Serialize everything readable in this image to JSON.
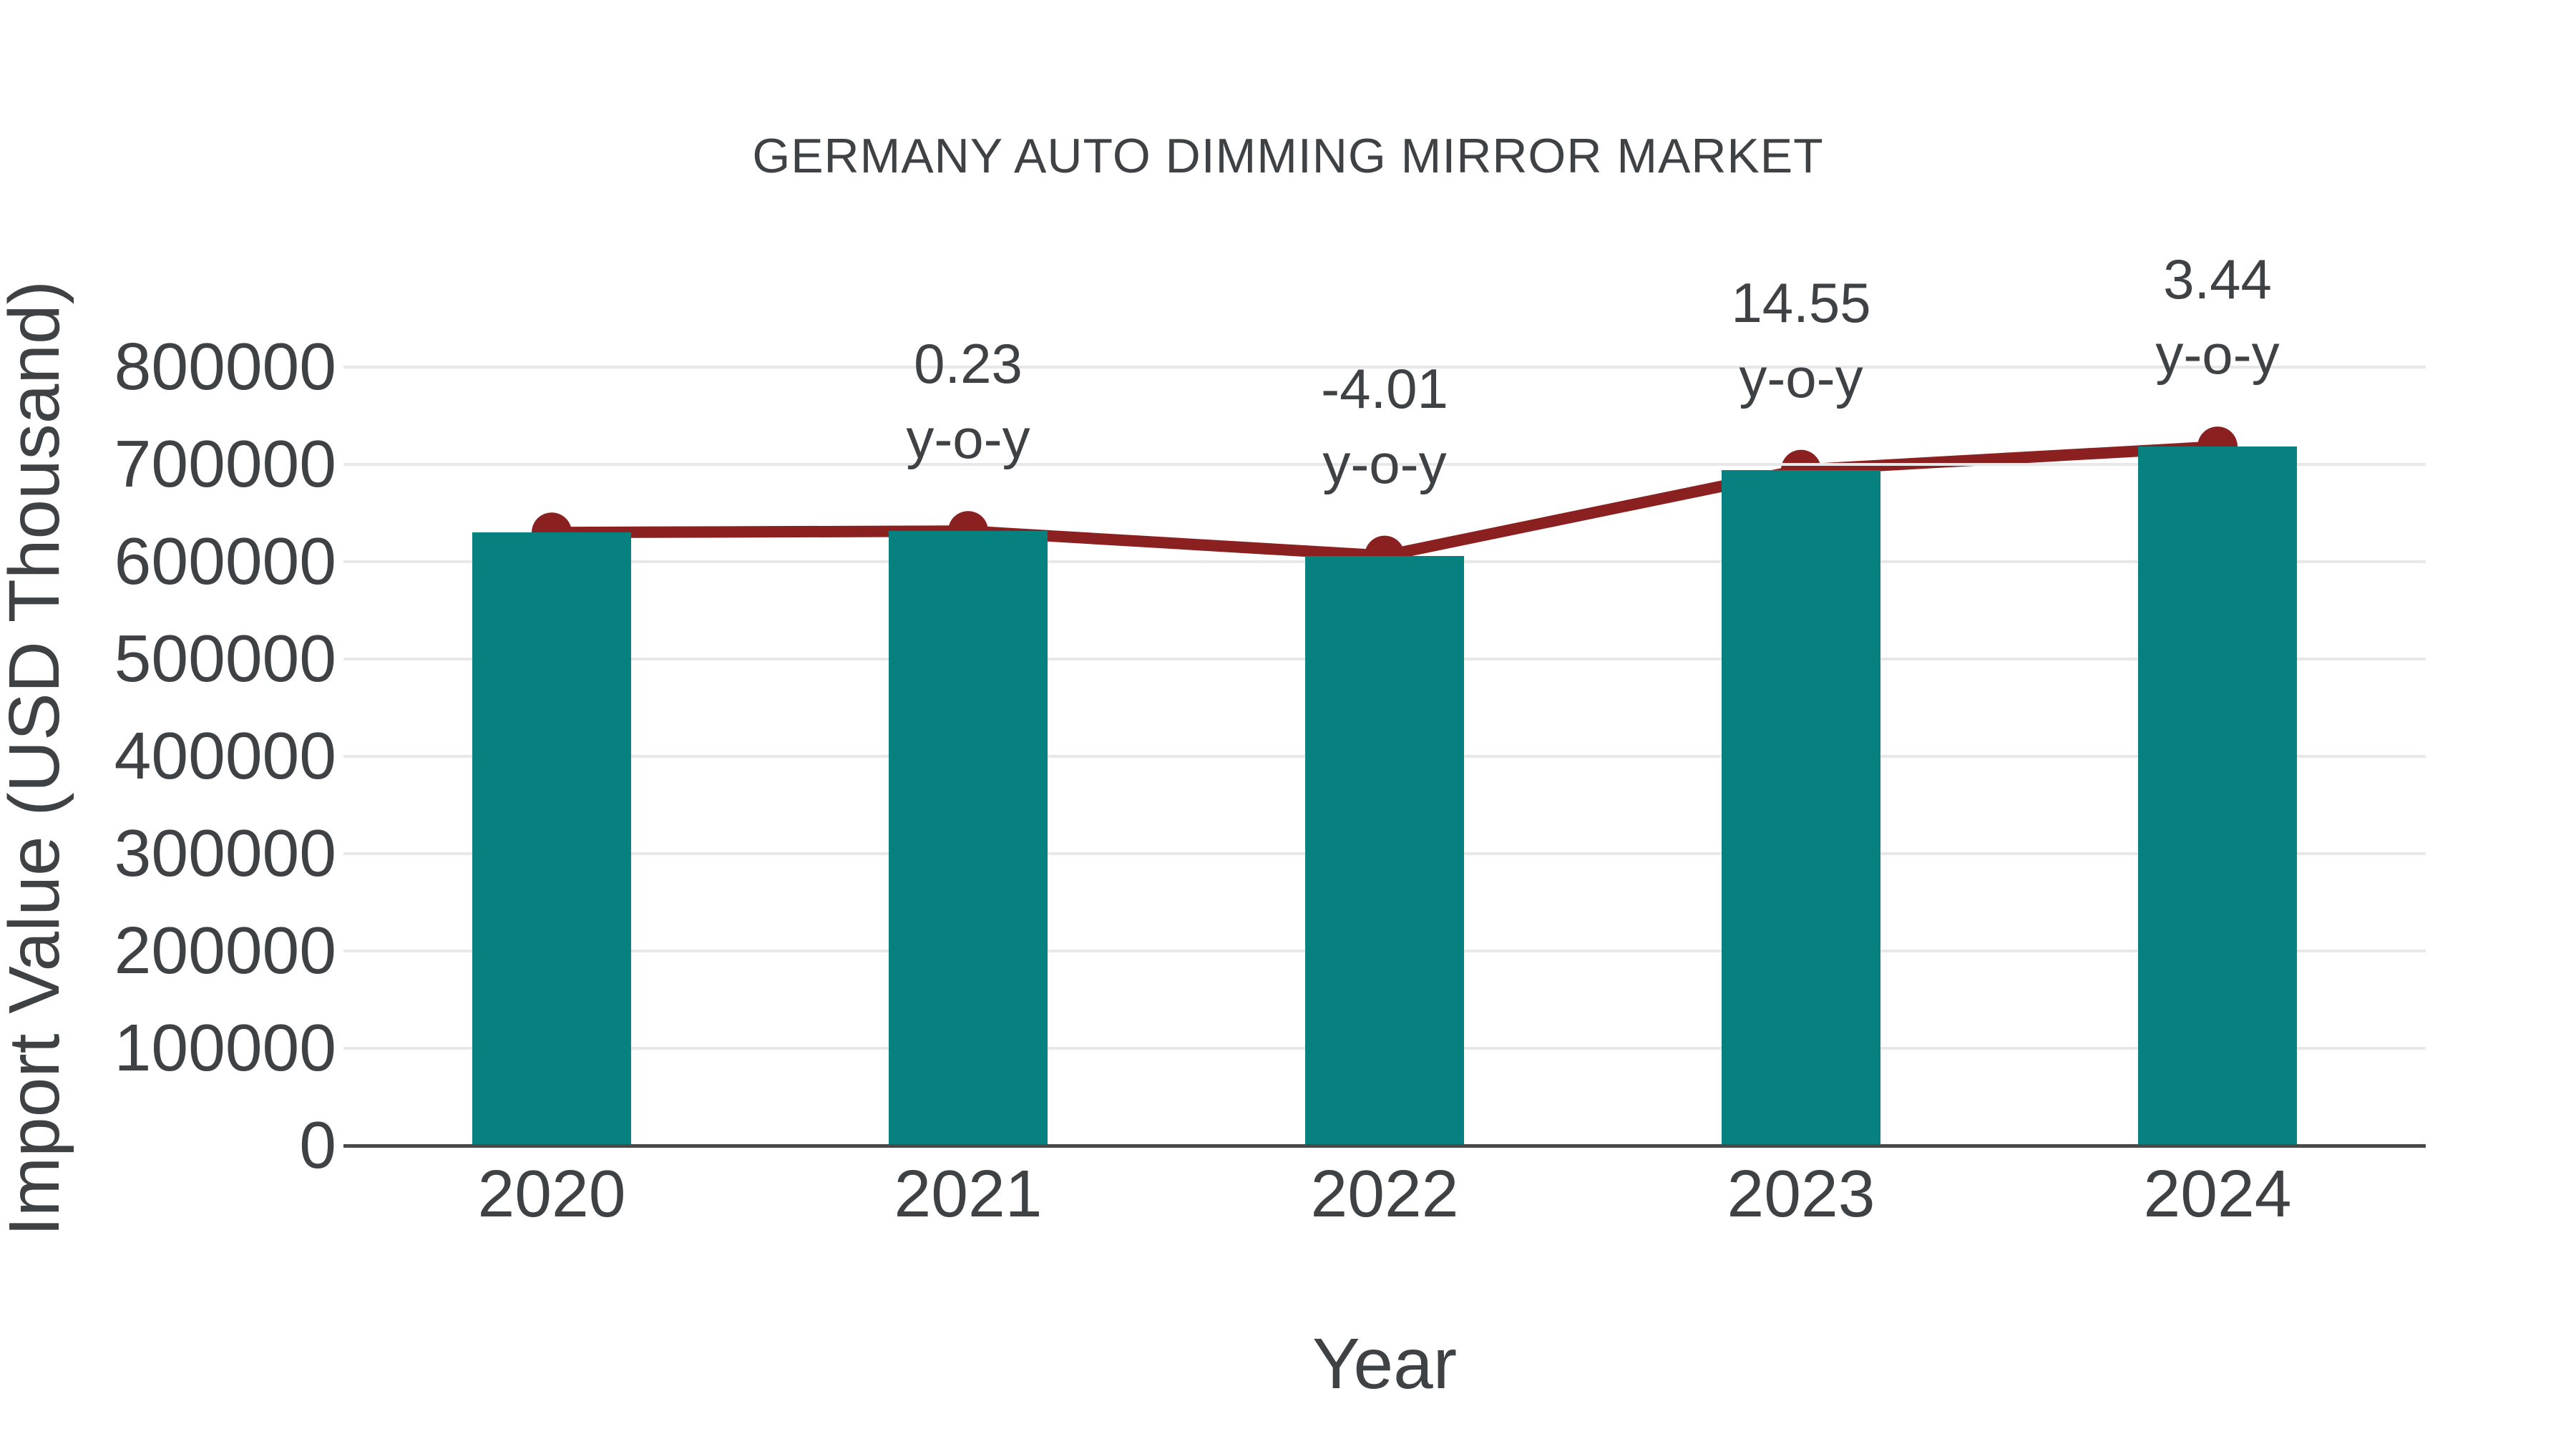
{
  "chart_data": {
    "type": "bar",
    "title": "GERMANY AUTO DIMMING MIRROR MARKET",
    "xlabel": "Year",
    "ylabel": "Import Value (USD Thousand)",
    "categories": [
      "2020",
      "2021",
      "2022",
      "2023",
      "2024"
    ],
    "series": [
      {
        "name": "Import Value (USD Thousand)",
        "type": "bar",
        "color": "#078180",
        "values": [
          630000,
          631450,
          606130,
          694370,
          718260
        ]
      },
      {
        "name": "y-o-y growth marker line",
        "type": "line",
        "color": "#8a2020",
        "values": [
          630000,
          631450,
          606130,
          694370,
          718260
        ],
        "point_labels": [
          null,
          "0.23",
          "-4.01",
          "14.55",
          "3.44"
        ],
        "label_suffix": "y-o-y"
      }
    ],
    "yoy_percent": [
      null,
      0.23,
      -4.01,
      14.55,
      3.44
    ],
    "yticks": [
      "0",
      "100000",
      "200000",
      "300000",
      "400000",
      "500000",
      "600000",
      "700000",
      "800000"
    ],
    "ylim": [
      0,
      800000
    ],
    "grid": true,
    "legend": "none"
  }
}
